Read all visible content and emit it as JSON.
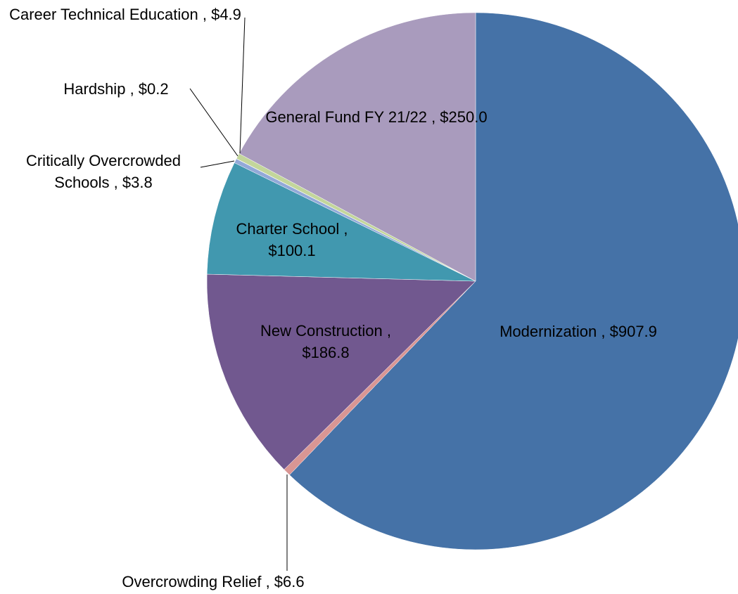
{
  "chart_data": {
    "type": "pie",
    "categories": [
      "Modernization",
      "Overcrowding Relief",
      "New Construction",
      "Charter School",
      "Critically Overcrowded Schools",
      "Hardship",
      "Career Technical Education",
      "General Fund FY 21/22"
    ],
    "values": [
      907.9,
      6.6,
      186.8,
      100.1,
      3.8,
      0.2,
      4.9,
      250.0
    ],
    "value_labels": [
      ", $907.9",
      ", $6.6",
      ", $186.8",
      ", $100.1",
      ", $3.8",
      ", $0.2",
      ", $4.9",
      ", $250.0"
    ],
    "colors": [
      "#4572a7",
      "#d99694",
      "#71588f",
      "#4198af",
      "#93a9d8",
      "#f2b6b6",
      "#c3d69b",
      "#a99bbd"
    ]
  }
}
